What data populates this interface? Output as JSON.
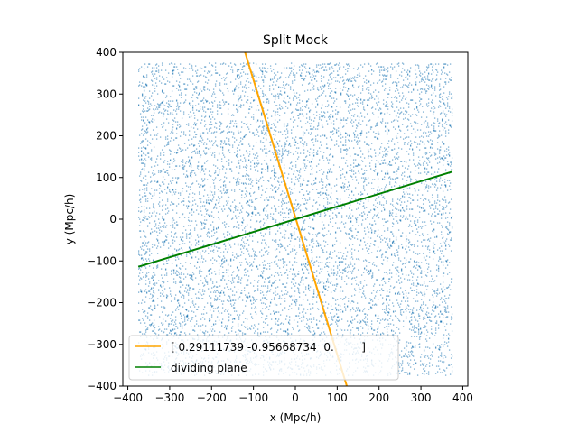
{
  "chart_data": {
    "type": "scatter",
    "title": "Split Mock",
    "xlabel": "x (Mpc/h)",
    "ylabel": "y (Mpc/h)",
    "xlim": [
      -412,
      412
    ],
    "ylim": [
      -400,
      400
    ],
    "xticks": [
      -400,
      -300,
      -200,
      -100,
      0,
      100,
      200,
      300,
      400
    ],
    "yticks": [
      -400,
      -300,
      -200,
      -100,
      0,
      100,
      200,
      300,
      400
    ],
    "xtick_labels": [
      "−400",
      "−300",
      "−200",
      "−100",
      "0",
      "100",
      "200",
      "300",
      "400"
    ],
    "ytick_labels": [
      "−400",
      "−300",
      "−200",
      "−100",
      "0",
      "100",
      "200",
      "300",
      "400"
    ],
    "grid": false,
    "legend_position": "lower-left",
    "series": [
      {
        "kind": "scatter",
        "color": "#1f77b4",
        "point_region": {
          "x": [
            -375,
            375
          ],
          "y": [
            -375,
            375
          ]
        }
      },
      {
        "kind": "line",
        "name": "[ 0.29111739 -0.95668734  0.        ]",
        "color": "#ffa500",
        "x": [
          -120,
          123
        ],
        "y": [
          400,
          -400
        ]
      },
      {
        "kind": "line",
        "name": "dividing plane",
        "color": "#008000",
        "x": [
          -375,
          375
        ],
        "y": [
          -114,
          114
        ]
      }
    ]
  }
}
